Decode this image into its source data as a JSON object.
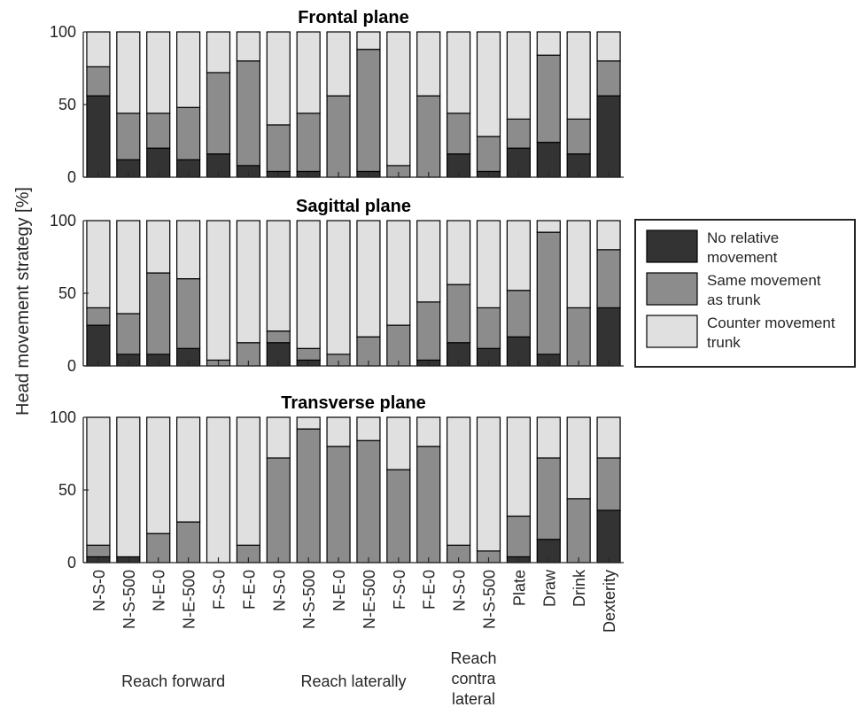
{
  "chart_data": {
    "type": "bar",
    "stacked": true,
    "ylabel": "Head movement strategy [%]",
    "ylim": [
      0,
      100
    ],
    "yticks": [
      0,
      50,
      100
    ],
    "categories": [
      "N-S-0",
      "N-S-500",
      "N-E-0",
      "N-E-500",
      "F-S-0",
      "F-E-0",
      "N-S-0",
      "N-S-500",
      "N-E-0",
      "N-E-500",
      "F-S-0",
      "F-E-0",
      "N-S-0",
      "N-S-500",
      "Plate",
      "Draw",
      "Drink",
      "Dexterity"
    ],
    "groups": [
      {
        "label": "Reach forward"
      },
      {
        "label": "Reach laterally"
      },
      {
        "label_lines": [
          "Reach",
          "contra",
          "lateral"
        ]
      }
    ],
    "legend": {
      "position": "right",
      "entries": [
        {
          "lines": [
            "No relative",
            "movement"
          ],
          "color": "#333333"
        },
        {
          "lines": [
            "Same movement",
            "as trunk"
          ],
          "color": "#8c8c8c"
        },
        {
          "lines": [
            "Counter movement",
            "trunk"
          ],
          "color": "#e0e0e0"
        }
      ]
    },
    "colors": {
      "no_relative": "#333333",
      "same": "#8c8c8c",
      "counter": "#e0e0e0"
    },
    "panels": [
      {
        "title": "Frontal plane",
        "series": [
          {
            "values": [
              56,
              12,
              20,
              12,
              16,
              8,
              4,
              4,
              0,
              4,
              0,
              0,
              16,
              4,
              20,
              24,
              16,
              56
            ]
          },
          {
            "values": [
              20,
              32,
              24,
              36,
              56,
              72,
              32,
              40,
              56,
              84,
              8,
              56,
              28,
              24,
              20,
              60,
              24,
              24
            ]
          },
          {
            "values": [
              24,
              56,
              56,
              52,
              28,
              20,
              64,
              56,
              44,
              12,
              92,
              44,
              56,
              72,
              60,
              16,
              60,
              20
            ]
          }
        ]
      },
      {
        "title": "Sagittal plane",
        "series": [
          {
            "values": [
              28,
              8,
              8,
              12,
              0,
              0,
              16,
              4,
              0,
              0,
              0,
              4,
              16,
              12,
              20,
              8,
              0,
              40
            ]
          },
          {
            "values": [
              12,
              28,
              56,
              48,
              4,
              16,
              8,
              8,
              8,
              20,
              28,
              40,
              40,
              28,
              32,
              84,
              40,
              40
            ]
          },
          {
            "values": [
              60,
              64,
              36,
              40,
              96,
              84,
              76,
              88,
              92,
              80,
              72,
              56,
              44,
              60,
              48,
              8,
              60,
              20
            ]
          }
        ]
      },
      {
        "title": "Transverse plane",
        "series": [
          {
            "values": [
              4,
              4,
              0,
              0,
              0,
              0,
              0,
              0,
              0,
              0,
              0,
              0,
              0,
              0,
              4,
              16,
              0,
              36
            ]
          },
          {
            "values": [
              8,
              0,
              20,
              28,
              0,
              12,
              72,
              92,
              80,
              84,
              64,
              80,
              12,
              8,
              28,
              56,
              44,
              36
            ]
          },
          {
            "values": [
              88,
              96,
              80,
              72,
              100,
              88,
              28,
              8,
              20,
              16,
              36,
              20,
              88,
              92,
              68,
              28,
              56,
              28
            ]
          }
        ]
      }
    ]
  }
}
